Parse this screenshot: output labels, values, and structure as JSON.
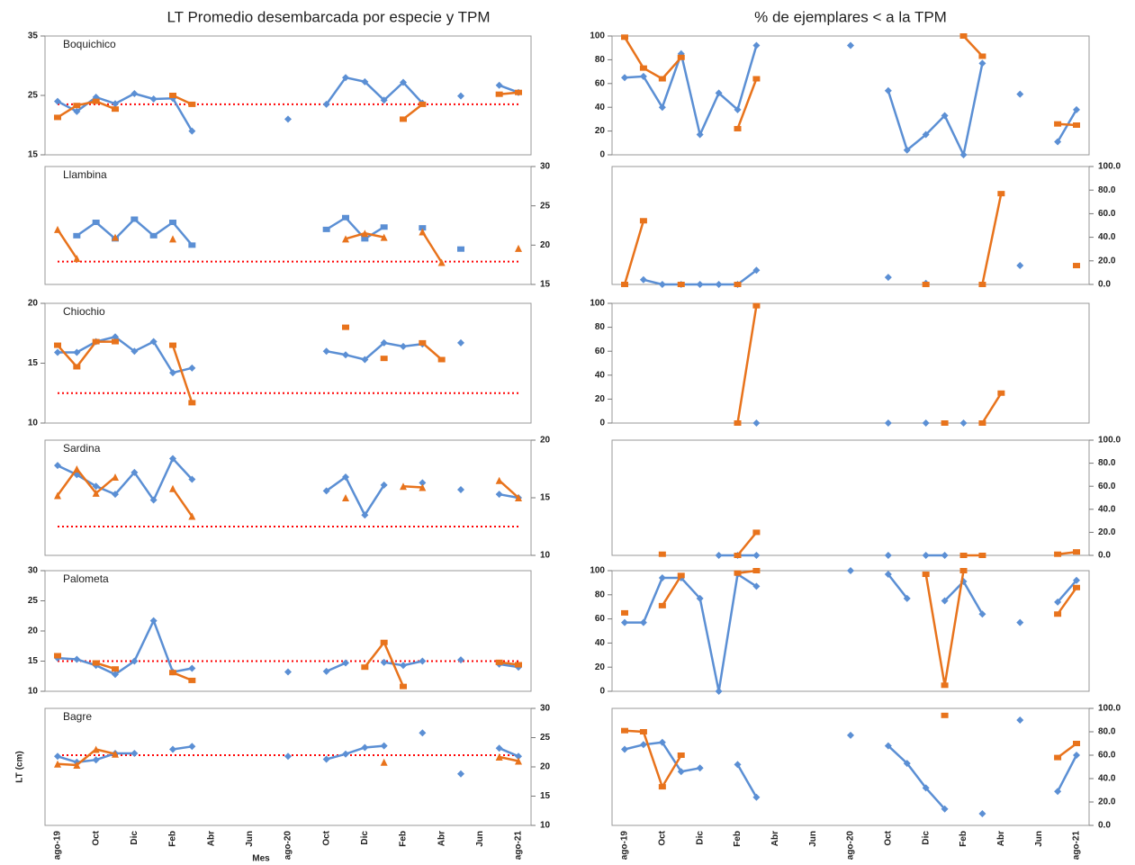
{
  "headings": [
    "LT Promedio desembarcada por especie y TPM",
    "% de ejemplares < a la TPM"
  ],
  "chart_data": [
    {
      "type": "line",
      "title": "Boquichico",
      "axis_side": "left",
      "ylim": [
        15,
        35
      ],
      "yticks": [
        15,
        25,
        35
      ],
      "reference_line": {
        "value": 23.5,
        "color": "#ff0000"
      },
      "series": [
        {
          "color": "#5b8fd4",
          "marker": "diamond",
          "values": [
            24,
            22.3,
            24.7,
            23.6,
            25.3,
            24.4,
            24.5,
            19,
            null,
            null,
            null,
            null,
            21,
            null,
            23.5,
            28,
            27.3,
            24.2,
            27.2,
            23.7,
            null,
            24.9,
            null,
            26.7,
            25.5
          ]
        },
        {
          "color": "#e8731c",
          "marker": "square",
          "values": [
            21.3,
            23.3,
            24,
            22.7,
            null,
            null,
            25,
            23.5,
            null,
            null,
            null,
            null,
            null,
            null,
            null,
            null,
            null,
            null,
            21,
            23.5,
            null,
            null,
            null,
            25.2,
            25.5
          ]
        }
      ]
    },
    {
      "type": "line",
      "title": "Llambina",
      "axis_side": "right",
      "ylim": [
        15,
        30
      ],
      "yticks": [
        15,
        20,
        25,
        30
      ],
      "reference_line": {
        "value": 17.9,
        "color": "#ff0000"
      },
      "series": [
        {
          "color": "#5b8fd4",
          "marker": "square",
          "values": [
            null,
            21.2,
            22.9,
            20.8,
            23.3,
            21.2,
            22.9,
            20,
            null,
            null,
            null,
            null,
            null,
            null,
            22,
            23.5,
            20.8,
            22.3,
            null,
            22.2,
            null,
            19.5,
            null,
            null,
            null
          ]
        },
        {
          "color": "#e8731c",
          "marker": "triangle",
          "values": [
            22,
            18.3,
            null,
            21,
            null,
            null,
            20.8,
            null,
            null,
            null,
            null,
            null,
            null,
            null,
            null,
            20.8,
            21.5,
            21,
            null,
            21.7,
            17.8,
            null,
            null,
            null,
            19.6
          ]
        }
      ]
    },
    {
      "type": "line",
      "title": "Chiochio",
      "axis_side": "left",
      "ylim": [
        10,
        20
      ],
      "yticks": [
        10,
        15,
        20
      ],
      "reference_line": {
        "value": 12.5,
        "color": "#ff0000"
      },
      "series": [
        {
          "color": "#5b8fd4",
          "marker": "diamond",
          "values": [
            15.9,
            15.9,
            16.8,
            17.2,
            16,
            16.8,
            14.2,
            14.6,
            null,
            null,
            null,
            null,
            null,
            null,
            16,
            15.7,
            15.3,
            16.7,
            16.4,
            16.6,
            null,
            16.7,
            null,
            null,
            null
          ]
        },
        {
          "color": "#e8731c",
          "marker": "square",
          "values": [
            16.5,
            14.7,
            16.8,
            16.8,
            null,
            null,
            16.5,
            11.7,
            null,
            null,
            null,
            null,
            null,
            null,
            null,
            18,
            null,
            15.4,
            null,
            16.7,
            15.3,
            null,
            null,
            null,
            null
          ]
        }
      ]
    },
    {
      "type": "line",
      "title": "Sardina",
      "axis_side": "right",
      "ylim": [
        10,
        20
      ],
      "yticks": [
        10,
        15,
        20
      ],
      "reference_line": {
        "value": 12.5,
        "color": "#ff0000"
      },
      "series": [
        {
          "color": "#5b8fd4",
          "marker": "diamond",
          "values": [
            17.8,
            17,
            16,
            15.3,
            17.2,
            14.8,
            18.4,
            16.6,
            null,
            null,
            null,
            null,
            null,
            null,
            15.6,
            16.8,
            13.5,
            16.1,
            null,
            16.3,
            null,
            15.7,
            null,
            15.3,
            15
          ]
        },
        {
          "color": "#e8731c",
          "marker": "triangle",
          "values": [
            15.2,
            17.5,
            15.4,
            16.8,
            null,
            null,
            15.8,
            13.4,
            null,
            null,
            null,
            null,
            null,
            null,
            null,
            15,
            null,
            null,
            16,
            15.9,
            null,
            null,
            null,
            16.5,
            15
          ]
        }
      ]
    },
    {
      "type": "line",
      "title": "Palometa",
      "axis_side": "left",
      "ylim": [
        10,
        30
      ],
      "yticks": [
        10,
        15,
        20,
        25,
        30
      ],
      "reference_line": {
        "value": 15,
        "color": "#ff0000"
      },
      "series": [
        {
          "color": "#5b8fd4",
          "marker": "diamond",
          "values": [
            15.5,
            15.3,
            14.3,
            12.8,
            15,
            21.7,
            13.2,
            13.8,
            null,
            null,
            null,
            null,
            13.2,
            null,
            13.3,
            14.7,
            null,
            14.8,
            14.3,
            15,
            null,
            15.2,
            null,
            14.5,
            14
          ]
        },
        {
          "color": "#e8731c",
          "marker": "square",
          "values": [
            15.9,
            null,
            14.7,
            13.7,
            null,
            null,
            13.1,
            11.8,
            null,
            null,
            null,
            null,
            null,
            null,
            null,
            null,
            14,
            18.1,
            10.8,
            null,
            null,
            null,
            null,
            14.8,
            14.4
          ]
        }
      ]
    },
    {
      "type": "line",
      "title": "Bagre",
      "axis_side": "right",
      "ylim": [
        10,
        30
      ],
      "yticks": [
        10,
        15,
        20,
        25,
        30
      ],
      "y_label": "LT (cm)",
      "x_label": "Mes",
      "categories": [
        "ago-19",
        null,
        "Oct",
        null,
        "Dic",
        null,
        "Feb",
        null,
        "Abr",
        null,
        "Jun",
        null,
        "ago-20",
        null,
        "Oct",
        null,
        "Dic",
        null,
        "Feb",
        null,
        "Abr",
        null,
        "Jun",
        null,
        "ago-21"
      ],
      "reference_line": {
        "value": 22,
        "color": "#ff0000"
      },
      "series": [
        {
          "color": "#5b8fd4",
          "marker": "diamond",
          "values": [
            21.8,
            20.8,
            21.2,
            22.3,
            22.3,
            null,
            23,
            23.5,
            null,
            null,
            null,
            null,
            21.8,
            null,
            21.3,
            22.2,
            23.3,
            23.6,
            null,
            25.8,
            null,
            18.8,
            null,
            23.2,
            21.8
          ]
        },
        {
          "color": "#e8731c",
          "marker": "triangle",
          "values": [
            20.5,
            20.3,
            23,
            22.2,
            null,
            null,
            null,
            null,
            null,
            null,
            null,
            null,
            null,
            null,
            null,
            null,
            null,
            20.8,
            null,
            null,
            null,
            null,
            null,
            21.7,
            21
          ]
        }
      ]
    },
    {
      "type": "line",
      "axis_side": "left",
      "ylim": [
        0,
        100
      ],
      "yticks": [
        0,
        20,
        40,
        60,
        80,
        100
      ],
      "series": [
        {
          "color": "#5b8fd4",
          "marker": "diamond",
          "values": [
            65,
            66,
            40,
            85,
            17,
            52,
            38,
            92,
            null,
            null,
            null,
            null,
            92,
            null,
            54,
            4,
            17,
            33,
            0,
            77,
            null,
            51,
            null,
            11,
            38
          ]
        },
        {
          "color": "#e8731c",
          "marker": "square",
          "values": [
            99,
            73,
            64,
            82,
            null,
            null,
            22,
            64,
            null,
            null,
            null,
            null,
            null,
            null,
            null,
            null,
            null,
            null,
            100,
            83,
            null,
            null,
            null,
            26,
            25
          ]
        }
      ]
    },
    {
      "type": "line",
      "axis_side": "right",
      "ylim": [
        0,
        100
      ],
      "yticks": [
        {
          "value": 0,
          "label": "0.0"
        },
        {
          "value": 20,
          "label": "20.0"
        },
        {
          "value": 40,
          "label": "40.0"
        },
        {
          "value": 60,
          "label": "60.0"
        },
        {
          "value": 80,
          "label": "80.0"
        },
        {
          "value": 100,
          "label": "100.0"
        }
      ],
      "series": [
        {
          "color": "#5b8fd4",
          "marker": "diamond",
          "values": [
            null,
            4,
            0,
            0,
            0,
            0,
            0,
            12,
            null,
            null,
            null,
            null,
            null,
            null,
            6,
            null,
            1,
            null,
            null,
            null,
            null,
            16,
            null,
            null,
            null
          ]
        },
        {
          "color": "#e8731c",
          "marker": "square",
          "values": [
            0,
            54,
            null,
            0,
            null,
            null,
            0,
            null,
            null,
            null,
            null,
            null,
            null,
            null,
            null,
            null,
            0,
            null,
            null,
            0,
            77,
            null,
            null,
            null,
            16
          ]
        }
      ]
    },
    {
      "type": "line",
      "axis_side": "left",
      "ylim": [
        0,
        100
      ],
      "yticks": [
        0,
        20,
        40,
        60,
        80,
        100
      ],
      "series": [
        {
          "color": "#5b8fd4",
          "marker": "diamond",
          "values": [
            null,
            null,
            null,
            null,
            null,
            null,
            null,
            0,
            null,
            null,
            null,
            null,
            null,
            null,
            0,
            null,
            0,
            null,
            0,
            null,
            null,
            null,
            null,
            null,
            null
          ]
        },
        {
          "color": "#e8731c",
          "marker": "square",
          "values": [
            null,
            null,
            null,
            null,
            null,
            null,
            0,
            98,
            null,
            null,
            null,
            null,
            null,
            null,
            null,
            null,
            null,
            0,
            null,
            0,
            25,
            null,
            null,
            null,
            null
          ]
        }
      ]
    },
    {
      "type": "line",
      "axis_side": "right",
      "ylim": [
        0,
        100
      ],
      "yticks": [
        {
          "value": 0,
          "label": "0.0"
        },
        {
          "value": 20,
          "label": "20.0"
        },
        {
          "value": 40,
          "label": "40.0"
        },
        {
          "value": 60,
          "label": "60.0"
        },
        {
          "value": 80,
          "label": "80.0"
        },
        {
          "value": 100,
          "label": "100.0"
        }
      ],
      "series": [
        {
          "color": "#5b8fd4",
          "marker": "diamond",
          "values": [
            null,
            null,
            null,
            null,
            null,
            0,
            0,
            0,
            null,
            null,
            null,
            null,
            null,
            null,
            0,
            null,
            0,
            0,
            null,
            null,
            null,
            null,
            null,
            null,
            null
          ]
        },
        {
          "color": "#e8731c",
          "marker": "square",
          "values": [
            null,
            null,
            1,
            null,
            null,
            null,
            0,
            20,
            null,
            null,
            null,
            null,
            null,
            null,
            null,
            null,
            null,
            null,
            0,
            0,
            null,
            null,
            null,
            1,
            3
          ]
        }
      ]
    },
    {
      "type": "line",
      "axis_side": "left",
      "ylim": [
        0,
        100
      ],
      "yticks": [
        0,
        20,
        40,
        60,
        80,
        100
      ],
      "series": [
        {
          "color": "#5b8fd4",
          "marker": "diamond",
          "values": [
            57,
            57,
            94,
            94,
            77,
            0,
            97,
            87,
            null,
            null,
            null,
            null,
            100,
            null,
            97,
            77,
            null,
            75,
            91,
            64,
            null,
            57,
            null,
            74,
            92
          ]
        },
        {
          "color": "#e8731c",
          "marker": "square",
          "values": [
            65,
            null,
            71,
            96,
            null,
            null,
            98,
            100,
            null,
            null,
            null,
            null,
            null,
            null,
            null,
            null,
            97,
            5,
            100,
            null,
            null,
            null,
            null,
            64,
            86
          ]
        }
      ]
    },
    {
      "type": "line",
      "axis_side": "right",
      "ylim": [
        0,
        100
      ],
      "yticks": [
        {
          "value": 0,
          "label": "0.0"
        },
        {
          "value": 20,
          "label": "20.0"
        },
        {
          "value": 40,
          "label": "40.0"
        },
        {
          "value": 60,
          "label": "60.0"
        },
        {
          "value": 80,
          "label": "80.0"
        },
        {
          "value": 100,
          "label": "100.0"
        }
      ],
      "categories": [
        "ago-19",
        null,
        "Oct",
        null,
        "Dic",
        null,
        "Feb",
        null,
        "Abr",
        null,
        "Jun",
        null,
        "ago-20",
        null,
        "Oct",
        null,
        "Dic",
        null,
        "Feb",
        null,
        "Abr",
        null,
        "Jun",
        null,
        "ago-21"
      ],
      "series": [
        {
          "color": "#5b8fd4",
          "marker": "diamond",
          "values": [
            65,
            69,
            71,
            46,
            49,
            null,
            52,
            24,
            null,
            null,
            null,
            null,
            77,
            null,
            68,
            53,
            32,
            14,
            null,
            10,
            null,
            90,
            null,
            29,
            60
          ]
        },
        {
          "color": "#e8731c",
          "marker": "square",
          "values": [
            81,
            80,
            33,
            60,
            null,
            null,
            null,
            null,
            null,
            null,
            null,
            null,
            null,
            null,
            null,
            null,
            null,
            94,
            null,
            null,
            null,
            null,
            null,
            58,
            70
          ]
        }
      ]
    }
  ]
}
